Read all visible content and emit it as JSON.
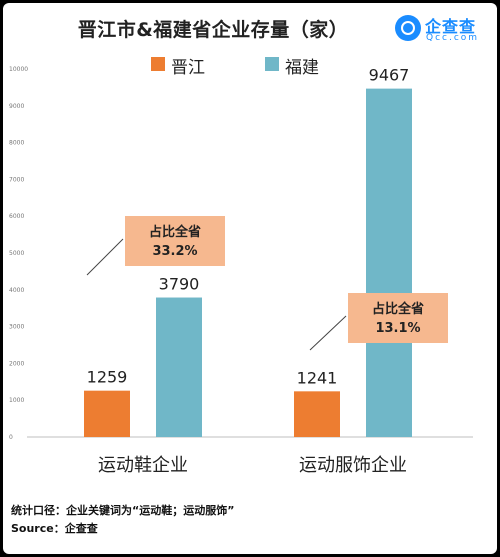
{
  "title": "晋江市&福建省企业存量（家）",
  "logo": {
    "name": "企查查",
    "url": "Qcc.com",
    "color": "#1a8cff"
  },
  "chart_data": {
    "type": "bar",
    "categories": [
      "运动鞋企业",
      "运动服饰企业"
    ],
    "series": [
      {
        "name": "晋江",
        "values": [
          1259,
          1241
        ],
        "color": "#ed7d31"
      },
      {
        "name": "福建",
        "values": [
          3790,
          9467
        ],
        "color": "#70b7c8"
      }
    ],
    "ylim": [
      0,
      10000
    ],
    "yticks": [
      0,
      1000,
      2000,
      3000,
      4000,
      5000,
      6000,
      7000,
      8000,
      9000,
      10000
    ],
    "grid": false,
    "legend_position": "top-center",
    "annotations": [
      {
        "lines": [
          "占比全省",
          "33.2%"
        ],
        "category": "运动鞋企业"
      },
      {
        "lines": [
          "占比全省",
          "13.1%"
        ],
        "category": "运动服饰企业"
      }
    ],
    "annotation_color": "#f6b88f"
  },
  "footnote": {
    "line1": "统计口径：企业关键词为“运动鞋；运动服饰”",
    "line2": "Source：企查查"
  }
}
